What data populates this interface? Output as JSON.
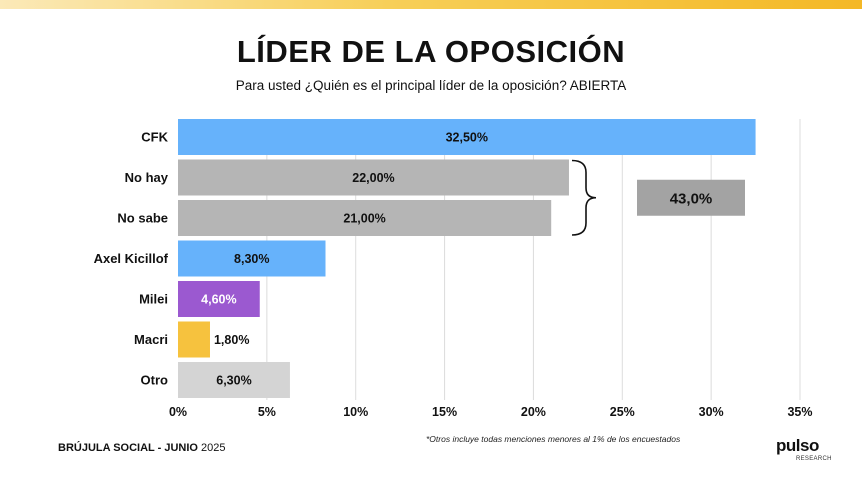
{
  "header": {
    "title": "LÍDER DE LA OPOSICIÓN",
    "subtitle": "Para usted ¿Quién es el principal líder de la oposición? ABIERTA"
  },
  "chart_data": {
    "type": "bar",
    "orientation": "horizontal",
    "categories": [
      "CFK",
      "No hay",
      "No sabe",
      "Axel Kicillof",
      "Milei",
      "Macri",
      "Otro"
    ],
    "values": [
      32.5,
      22.0,
      21.0,
      8.3,
      4.6,
      1.8,
      6.3
    ],
    "value_labels": [
      "32,50%",
      "22,00%",
      "21,00%",
      "8,30%",
      "4,60%",
      "1,80%",
      "6,30%"
    ],
    "bar_colors": [
      "#66b2fb",
      "#b5b5b5",
      "#b5b5b5",
      "#66b2fb",
      "#9b59d0",
      "#f6c23e",
      "#d4d4d4"
    ],
    "label_colors": [
      "#111111",
      "#111111",
      "#111111",
      "#111111",
      "#ffffff",
      "#111111",
      "#111111"
    ],
    "xlim": [
      0,
      35
    ],
    "xticks": [
      0,
      5,
      10,
      15,
      20,
      25,
      30,
      35
    ],
    "xtick_labels": [
      "0%",
      "5%",
      "10%",
      "15%",
      "20%",
      "25%",
      "30%",
      "35%"
    ],
    "grid": "vertical",
    "annotation": {
      "text": "43,0%",
      "brackets": [
        "No hay",
        "No sabe"
      ],
      "color": "#a3a3a3"
    }
  },
  "footer": {
    "source_bold": "BRÚJULA SOCIAL - JUNIO",
    "source_year": "2025",
    "footnote": "*Otros incluye todas menciones menores al 1% de los encuestados",
    "logo_text": "pulso",
    "logo_sub": "RESEARCH"
  }
}
